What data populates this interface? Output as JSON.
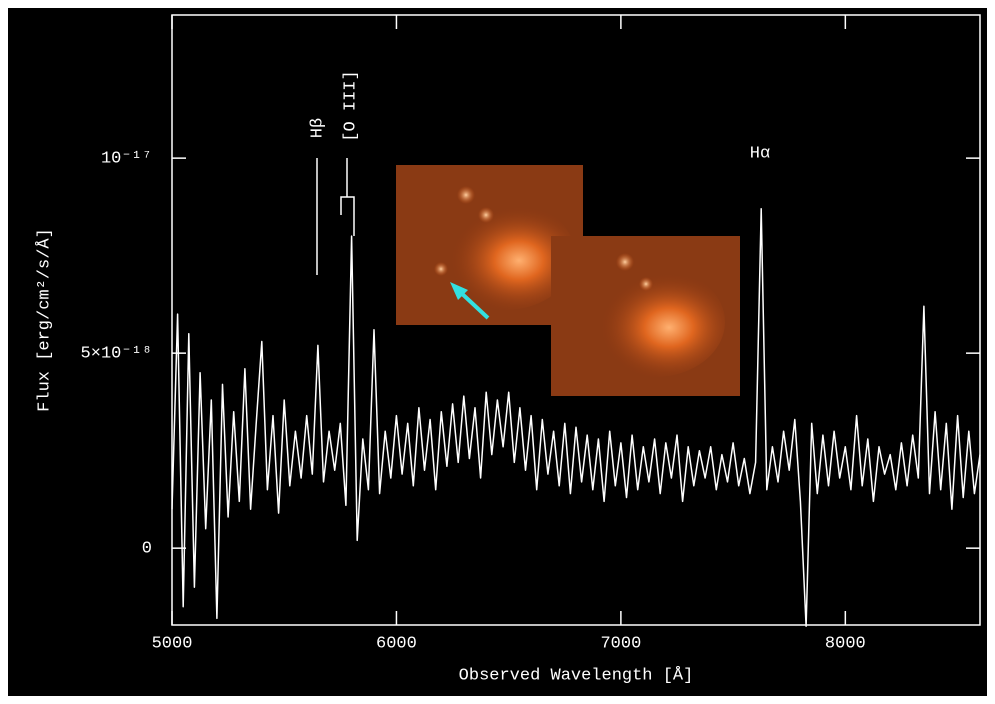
{
  "chart_data": {
    "type": "line",
    "xlabel": "Observed Wavelength [Å]",
    "ylabel": "Flux [erg/cm²/s/Å]",
    "annotations": [
      "Hβ",
      "[O III]",
      "Hα"
    ],
    "xlim": [
      5000,
      8600
    ],
    "ylim": [
      -1.97e-18,
      1.367e-17
    ],
    "xticks": [
      5000,
      6000,
      7000,
      8000
    ],
    "yticks": [
      0,
      {
        "value": 5e-18,
        "label": "5×10⁻¹⁸"
      },
      {
        "value": 1e-17,
        "label": "10⁻¹⁷"
      }
    ],
    "x": [
      5000,
      5025,
      5050,
      5075,
      5100,
      5125,
      5150,
      5175,
      5200,
      5225,
      5250,
      5275,
      5300,
      5325,
      5350,
      5375,
      5400,
      5425,
      5450,
      5475,
      5500,
      5525,
      5550,
      5575,
      5600,
      5625,
      5650,
      5675,
      5700,
      5725,
      5750,
      5775,
      5800,
      5825,
      5850,
      5875,
      5900,
      5925,
      5950,
      5975,
      6000,
      6025,
      6050,
      6075,
      6100,
      6125,
      6150,
      6175,
      6200,
      6225,
      6250,
      6275,
      6300,
      6325,
      6350,
      6375,
      6400,
      6425,
      6450,
      6475,
      6500,
      6525,
      6550,
      6575,
      6600,
      6625,
      6650,
      6675,
      6700,
      6725,
      6750,
      6775,
      6800,
      6825,
      6850,
      6875,
      6900,
      6925,
      6950,
      6975,
      7000,
      7025,
      7050,
      7075,
      7100,
      7125,
      7150,
      7175,
      7200,
      7225,
      7250,
      7275,
      7300,
      7325,
      7350,
      7375,
      7400,
      7425,
      7450,
      7475,
      7500,
      7525,
      7550,
      7575,
      7600,
      7625,
      7650,
      7675,
      7700,
      7725,
      7750,
      7775,
      7800,
      7825,
      7850,
      7875,
      7900,
      7925,
      7950,
      7975,
      8000,
      8025,
      8050,
      8075,
      8100,
      8125,
      8150,
      8175,
      8200,
      8225,
      8250,
      8275,
      8300,
      8325,
      8350,
      8375,
      8400,
      8425,
      8450,
      8475,
      8500,
      8525,
      8550,
      8575,
      8600
    ],
    "series": [
      {
        "color": "#ffffff",
        "values": [
          1e-18,
          6e-18,
          -1.5e-18,
          5.5e-18,
          -1e-18,
          4.5e-18,
          5e-19,
          3.8e-18,
          -1.8e-18,
          4.2e-18,
          8e-19,
          3.5e-18,
          1.2e-18,
          4.6e-18,
          1e-18,
          3.2e-18,
          5.3e-18,
          1.5e-18,
          3.4e-18,
          9e-19,
          3.8e-18,
          1.6e-18,
          3e-18,
          1.8e-18,
          3.4e-18,
          1.9e-18,
          5.2e-18,
          1.7e-18,
          3e-18,
          2e-18,
          3.2e-18,
          1.1e-18,
          8e-18,
          2e-19,
          2.8e-18,
          1.5e-18,
          5.6e-18,
          1.4e-18,
          3e-18,
          1.8e-18,
          3.4e-18,
          1.9e-18,
          3.2e-18,
          1.6e-18,
          3.6e-18,
          2e-18,
          3.3e-18,
          1.5e-18,
          3.5e-18,
          2.1e-18,
          3.7e-18,
          2.2e-18,
          3.9e-18,
          2.3e-18,
          3.6e-18,
          1.8e-18,
          4e-18,
          2.4e-18,
          3.8e-18,
          2.6e-18,
          4e-18,
          2.2e-18,
          3.6e-18,
          2e-18,
          3.4e-18,
          1.5e-18,
          3.3e-18,
          1.9e-18,
          3e-18,
          1.6e-18,
          3.2e-18,
          1.4e-18,
          3.1e-18,
          1.7e-18,
          2.9e-18,
          1.5e-18,
          2.8e-18,
          1.2e-18,
          3e-18,
          1.6e-18,
          2.7e-18,
          1.3e-18,
          2.9e-18,
          1.5e-18,
          2.6e-18,
          1.7e-18,
          2.8e-18,
          1.4e-18,
          2.7e-18,
          1.8e-18,
          2.9e-18,
          1.2e-18,
          2.6e-18,
          1.6e-18,
          2.5e-18,
          1.8e-18,
          2.6e-18,
          1.5e-18,
          2.4e-18,
          1.7e-18,
          2.7e-18,
          1.6e-18,
          2.3e-18,
          1.4e-18,
          2.2e-18,
          8.7e-18,
          1.5e-18,
          2.6e-18,
          1.7e-18,
          3e-18,
          2e-18,
          3.3e-18,
          1.2e-18,
          -2e-18,
          3.2e-18,
          1.4e-18,
          2.9e-18,
          1.6e-18,
          3e-18,
          1.8e-18,
          2.6e-18,
          1.5e-18,
          3.4e-18,
          1.6e-18,
          2.8e-18,
          1.2e-18,
          2.6e-18,
          1.9e-18,
          2.4e-18,
          1.5e-18,
          2.7e-18,
          1.6e-18,
          2.9e-18,
          1.8e-18,
          6.2e-18,
          1.4e-18,
          3.5e-18,
          1.5e-18,
          3.2e-18,
          1e-18,
          3.4e-18,
          1.3e-18,
          3e-18,
          1.4e-18,
          2.4e-18
        ]
      }
    ]
  }
}
